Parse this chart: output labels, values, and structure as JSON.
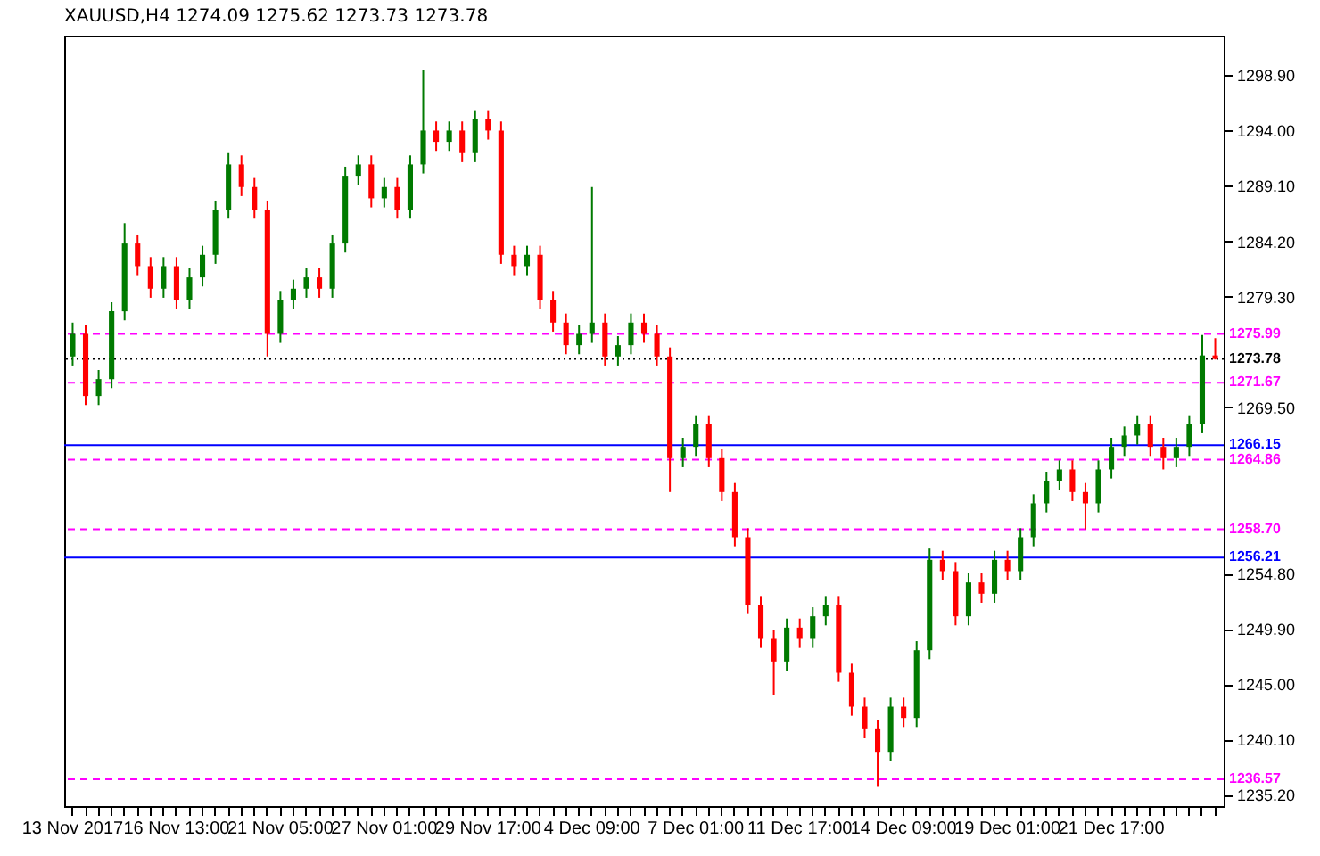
{
  "chart_data": {
    "type": "candlestick",
    "title": "XAUUSD,H4  1274.09 1275.62 1273.73 1273.78",
    "categories": [
      "13 Nov 2017",
      null,
      null,
      null,
      null,
      null,
      null,
      null,
      "16 Nov 13:00",
      null,
      null,
      null,
      null,
      null,
      null,
      null,
      "21 Nov 05:00",
      null,
      null,
      null,
      null,
      null,
      null,
      null,
      "27 Nov 01:00",
      null,
      null,
      null,
      null,
      null,
      null,
      null,
      "29 Nov 17:00",
      null,
      null,
      null,
      null,
      null,
      null,
      null,
      "4 Dec 09:00",
      null,
      null,
      null,
      null,
      null,
      null,
      null,
      "7 Dec 01:00",
      null,
      null,
      null,
      null,
      null,
      null,
      null,
      "11 Dec 17:00",
      null,
      null,
      null,
      null,
      null,
      null,
      null,
      "14 Dec 09:00",
      null,
      null,
      null,
      null,
      null,
      null,
      null,
      "19 Dec 01:00",
      null,
      null,
      null,
      null,
      null,
      null,
      null,
      "21 Dec 17:00",
      null,
      null,
      null,
      null,
      null,
      null,
      null,
      null
    ],
    "ohlc": [
      [
        1274,
        1277,
        1273.2,
        1276
      ],
      [
        1276,
        1276.8,
        1269.7,
        1270.5
      ],
      [
        1270.5,
        1272.8,
        1269.7,
        1272
      ],
      [
        1272,
        1278.8,
        1271.2,
        1278
      ],
      [
        1278,
        1285.8,
        1277.2,
        1284
      ],
      [
        1284,
        1284.8,
        1281.2,
        1282
      ],
      [
        1282,
        1282.8,
        1279.2,
        1280
      ],
      [
        1280,
        1282.8,
        1279.2,
        1282
      ],
      [
        1282,
        1282.8,
        1278.2,
        1279
      ],
      [
        1279,
        1281.8,
        1278.2,
        1281
      ],
      [
        1281,
        1283.8,
        1280.2,
        1283
      ],
      [
        1283,
        1287.8,
        1282.2,
        1287
      ],
      [
        1287,
        1292,
        1286.2,
        1291
      ],
      [
        1291,
        1291.8,
        1288.2,
        1289
      ],
      [
        1289,
        1289.8,
        1286.2,
        1287
      ],
      [
        1287,
        1287.8,
        1274,
        1276
      ],
      [
        1276,
        1279.8,
        1275.2,
        1279
      ],
      [
        1279,
        1280.8,
        1278.2,
        1280
      ],
      [
        1280,
        1281.8,
        1279.2,
        1281
      ],
      [
        1281,
        1281.8,
        1279.2,
        1280
      ],
      [
        1280,
        1284.8,
        1279.2,
        1284
      ],
      [
        1284,
        1290.8,
        1283.2,
        1290
      ],
      [
        1290,
        1291.8,
        1289.2,
        1291
      ],
      [
        1291,
        1291.8,
        1287.2,
        1288
      ],
      [
        1288,
        1289.8,
        1287.2,
        1289
      ],
      [
        1289,
        1289.8,
        1286.2,
        1287
      ],
      [
        1287,
        1291.8,
        1286.2,
        1291
      ],
      [
        1291,
        1299.4,
        1290.2,
        1294
      ],
      [
        1294,
        1294.8,
        1292.2,
        1293
      ],
      [
        1293,
        1294.8,
        1292.2,
        1294
      ],
      [
        1294,
        1294.8,
        1291.2,
        1292
      ],
      [
        1292,
        1295.8,
        1291.2,
        1295
      ],
      [
        1295,
        1295.8,
        1293.2,
        1294
      ],
      [
        1294,
        1294.8,
        1282.2,
        1283
      ],
      [
        1283,
        1283.8,
        1281.2,
        1282
      ],
      [
        1282,
        1283.8,
        1281.2,
        1283
      ],
      [
        1283,
        1283.8,
        1278.2,
        1279
      ],
      [
        1279,
        1279.8,
        1276.2,
        1277
      ],
      [
        1277,
        1277.8,
        1274.2,
        1275
      ],
      [
        1275,
        1276.8,
        1274.2,
        1276
      ],
      [
        1276,
        1289,
        1275.2,
        1277
      ],
      [
        1277,
        1277.8,
        1273.2,
        1274
      ],
      [
        1274,
        1275.8,
        1273.2,
        1275
      ],
      [
        1275,
        1277.8,
        1274.2,
        1277
      ],
      [
        1277,
        1277.8,
        1275.2,
        1276
      ],
      [
        1276,
        1276.8,
        1273.2,
        1274
      ],
      [
        1274,
        1274.8,
        1262,
        1265
      ],
      [
        1265,
        1266.8,
        1264.2,
        1266
      ],
      [
        1266,
        1268.8,
        1265.2,
        1268
      ],
      [
        1268,
        1268.8,
        1264.2,
        1265
      ],
      [
        1265,
        1265.8,
        1261.2,
        1262
      ],
      [
        1262,
        1262.8,
        1257.2,
        1258
      ],
      [
        1258,
        1258.8,
        1251.2,
        1252
      ],
      [
        1252,
        1252.8,
        1248.2,
        1249
      ],
      [
        1249,
        1249.8,
        1244,
        1247
      ],
      [
        1247,
        1250.8,
        1246.2,
        1250
      ],
      [
        1250,
        1250.8,
        1248.2,
        1249
      ],
      [
        1249,
        1251.8,
        1248.2,
        1251
      ],
      [
        1251,
        1252.8,
        1250.2,
        1252
      ],
      [
        1252,
        1252.8,
        1245.2,
        1246
      ],
      [
        1246,
        1246.8,
        1242.2,
        1243
      ],
      [
        1243,
        1243.8,
        1240.2,
        1241
      ],
      [
        1241,
        1241.8,
        1235.9,
        1239
      ],
      [
        1239,
        1243.8,
        1238.2,
        1243
      ],
      [
        1243,
        1243.8,
        1241.2,
        1242
      ],
      [
        1242,
        1248.8,
        1241.2,
        1248
      ],
      [
        1248,
        1257,
        1247.2,
        1256
      ],
      [
        1256,
        1256.8,
        1254.2,
        1255
      ],
      [
        1255,
        1255.8,
        1250.2,
        1251
      ],
      [
        1251,
        1254.8,
        1250.2,
        1254
      ],
      [
        1254,
        1254.8,
        1252.2,
        1253
      ],
      [
        1253,
        1256.8,
        1252.2,
        1256
      ],
      [
        1256,
        1256.8,
        1254.2,
        1255
      ],
      [
        1255,
        1258.8,
        1254.2,
        1258
      ],
      [
        1258,
        1261.8,
        1257.2,
        1261
      ],
      [
        1261,
        1263.8,
        1260.2,
        1263
      ],
      [
        1263,
        1264.8,
        1262.2,
        1264
      ],
      [
        1264,
        1264.8,
        1261.2,
        1262
      ],
      [
        1262,
        1262.8,
        1258.7,
        1261
      ],
      [
        1261,
        1264.8,
        1260.2,
        1264
      ],
      [
        1264,
        1266.8,
        1263.2,
        1266
      ],
      [
        1266,
        1267.8,
        1265.2,
        1267
      ],
      [
        1267,
        1268.8,
        1266.2,
        1268
      ],
      [
        1268,
        1268.8,
        1265.2,
        1266
      ],
      [
        1266,
        1266.8,
        1264,
        1265
      ],
      [
        1265,
        1266.8,
        1264.2,
        1266
      ],
      [
        1266,
        1268.8,
        1265.2,
        1268
      ],
      [
        1268,
        1275.9,
        1267.2,
        1274.09
      ],
      [
        1274.09,
        1275.62,
        1273.73,
        1273.78
      ]
    ],
    "ylim": [
      1234.2,
      1302.4
    ],
    "yticks": [
      {
        "value": 1298.9,
        "label": "1298.90"
      },
      {
        "value": 1294,
        "label": "1294.00"
      },
      {
        "value": 1289.1,
        "label": "1289.10"
      },
      {
        "value": 1284.2,
        "label": "1284.20"
      },
      {
        "value": 1279.3,
        "label": "1279.30"
      },
      {
        "value": 1269.5,
        "label": "1269.50"
      },
      {
        "value": 1254.8,
        "label": "1254.80"
      },
      {
        "value": 1249.9,
        "label": "1249.90"
      },
      {
        "value": 1245,
        "label": "1245.00"
      },
      {
        "value": 1240.1,
        "label": "1240.10"
      },
      {
        "value": 1235.2,
        "label": "1235.20"
      }
    ],
    "ref_lines": [
      {
        "axis": "y",
        "value": 1275.99,
        "label": "1275.99",
        "color": "#ff00ff",
        "line_style": "dashed"
      },
      {
        "axis": "y",
        "value": 1273.78,
        "label": "1273.78",
        "color": "#000000",
        "line_style": "dotted"
      },
      {
        "axis": "y",
        "value": 1271.67,
        "label": "1271.67",
        "color": "#ff00ff",
        "line_style": "dashed"
      },
      {
        "axis": "y",
        "value": 1266.15,
        "label": "1266.15",
        "color": "#0000ff",
        "line_style": "solid"
      },
      {
        "axis": "y",
        "value": 1264.86,
        "label": "1264.86",
        "color": "#ff00ff",
        "line_style": "dashed"
      },
      {
        "axis": "y",
        "value": 1258.7,
        "label": "1258.70",
        "color": "#ff00ff",
        "line_style": "dashed"
      },
      {
        "axis": "y",
        "value": 1256.21,
        "label": "1256.21",
        "color": "#0000ff",
        "line_style": "solid"
      },
      {
        "axis": "y",
        "value": 1236.57,
        "label": "1236.57",
        "color": "#ff00ff",
        "line_style": "dashed"
      }
    ],
    "grid": false
  }
}
